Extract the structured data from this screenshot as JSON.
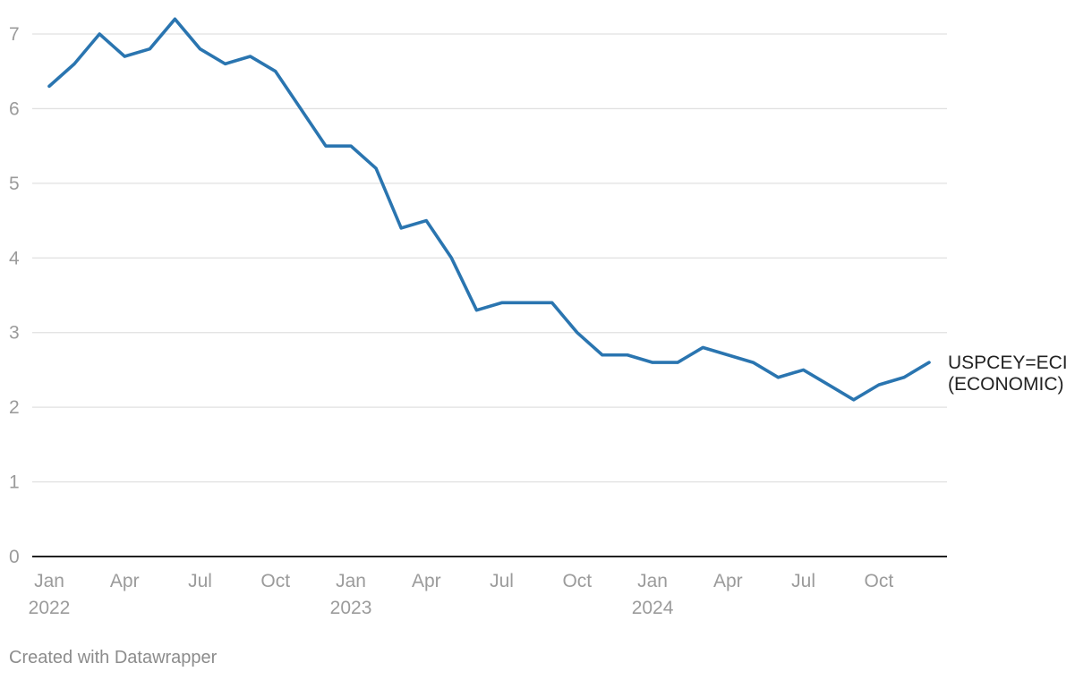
{
  "chart_data": {
    "type": "line",
    "series": [
      {
        "name": "USPCEY=ECI (ECONOMIC)",
        "name_lines": [
          "USPCEY=ECI",
          "(ECONOMIC)"
        ],
        "color": "#2a75b0",
        "x": [
          "2022-01",
          "2022-02",
          "2022-03",
          "2022-04",
          "2022-05",
          "2022-06",
          "2022-07",
          "2022-08",
          "2022-09",
          "2022-10",
          "2022-11",
          "2022-12",
          "2023-01",
          "2023-02",
          "2023-03",
          "2023-04",
          "2023-05",
          "2023-06",
          "2023-07",
          "2023-08",
          "2023-09",
          "2023-10",
          "2023-11",
          "2023-12",
          "2024-01",
          "2024-02",
          "2024-03",
          "2024-04",
          "2024-05",
          "2024-06",
          "2024-07",
          "2024-08",
          "2024-09",
          "2024-10",
          "2024-11",
          "2024-12"
        ],
        "values": [
          6.3,
          6.6,
          7.0,
          6.7,
          6.8,
          7.2,
          6.8,
          6.6,
          6.7,
          6.5,
          6.0,
          5.5,
          5.5,
          5.2,
          4.4,
          4.5,
          4.0,
          3.3,
          3.4,
          3.4,
          3.4,
          3.0,
          2.7,
          2.7,
          2.6,
          2.6,
          2.8,
          2.7,
          2.6,
          2.4,
          2.5,
          2.3,
          2.1,
          2.3,
          2.4,
          2.6
        ]
      }
    ],
    "y_ticks": [
      "0",
      "1",
      "2",
      "3",
      "4",
      "5",
      "6",
      "7"
    ],
    "ylim": [
      0,
      7
    ],
    "x_ticks": [
      {
        "date": "2022-01",
        "label": "Jan",
        "year": "2022"
      },
      {
        "date": "2022-04",
        "label": "Apr",
        "year": ""
      },
      {
        "date": "2022-07",
        "label": "Jul",
        "year": ""
      },
      {
        "date": "2022-10",
        "label": "Oct",
        "year": ""
      },
      {
        "date": "2023-01",
        "label": "Jan",
        "year": "2023"
      },
      {
        "date": "2023-04",
        "label": "Apr",
        "year": ""
      },
      {
        "date": "2023-07",
        "label": "Jul",
        "year": ""
      },
      {
        "date": "2023-10",
        "label": "Oct",
        "year": ""
      },
      {
        "date": "2024-01",
        "label": "Jan",
        "year": "2024"
      },
      {
        "date": "2024-04",
        "label": "Apr",
        "year": ""
      },
      {
        "date": "2024-07",
        "label": "Jul",
        "year": ""
      },
      {
        "date": "2024-10",
        "label": "Oct",
        "year": ""
      }
    ],
    "grid": true,
    "gridline_color": "#e1e1e1",
    "axis_color": "#222222"
  },
  "footer": {
    "credit": "Created with Datawrapper"
  }
}
